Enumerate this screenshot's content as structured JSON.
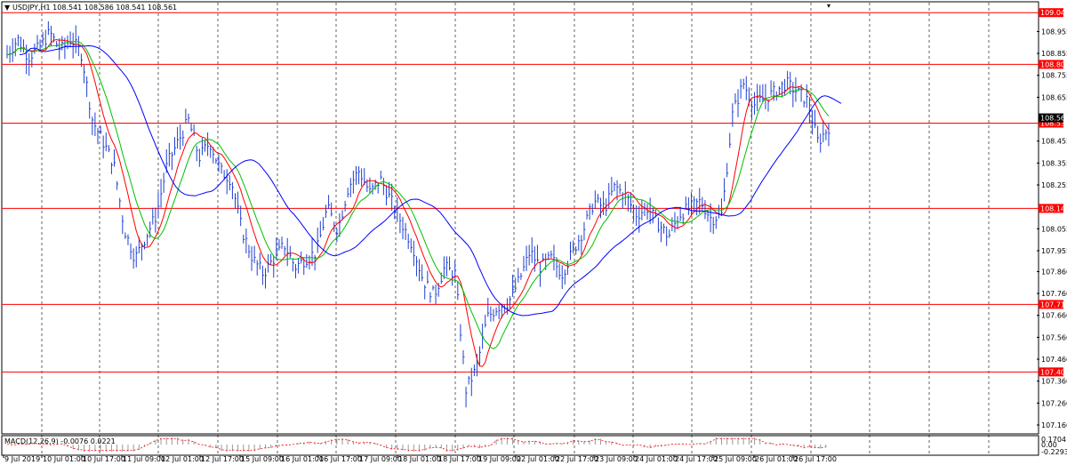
{
  "window": {
    "title": "USDJPY,H1  108.541 108.586 108.541 108.561",
    "menu_icon": "triangle-down-icon"
  },
  "macd": {
    "label": "MACD(12,26,9) -0.0076 0.0221",
    "scale": [
      "0.1704",
      "0.00",
      "-0.2293"
    ]
  },
  "price_axis": {
    "labels": [
      "108.955",
      "108.855",
      "108.755",
      "108.655",
      "108.455",
      "108.355",
      "108.255",
      "108.055",
      "107.955",
      "107.860",
      "107.760",
      "107.660",
      "107.560",
      "107.460",
      "107.360",
      "107.260",
      "107.160"
    ],
    "current_price": "108.561"
  },
  "hlines": [
    {
      "price": "109.041",
      "color": "#ff0000"
    },
    {
      "price": "108.805",
      "color": "#ff0000"
    },
    {
      "price": "108.537",
      "color": "#ff0000"
    },
    {
      "price": "108.148",
      "color": "#ff0000"
    },
    {
      "price": "107.710",
      "color": "#ff0000"
    },
    {
      "price": "107.402",
      "color": "#ff0000"
    }
  ],
  "time_axis": [
    "9 Jul 2019",
    "10 Jul 01:00",
    "10 Jul 17:00",
    "11 Jul 09:00",
    "12 Jul 01:00",
    "12 Jul 17:00",
    "15 Jul 09:00",
    "16 Jul 01:00",
    "16 Jul 17:00",
    "17 Jul 09:00",
    "18 Jul 01:00",
    "18 Jul 17:00",
    "19 Jul 09:00",
    "22 Jul 01:00",
    "22 Jul 17:00",
    "23 Jul 09:00",
    "24 Jul 01:00",
    "24 Jul 17:00",
    "25 Jul 09:00",
    "26 Jul 01:00",
    "26 Jul 17:00"
  ],
  "chart_data": {
    "type": "bar",
    "symbol": "USDJPY",
    "timeframe": "H1",
    "ohlc_header": [
      108.541,
      108.586,
      108.541,
      108.561
    ],
    "ylim": [
      107.16,
      109.05
    ],
    "moving_averages_colors": [
      "#ff0000",
      "#00c000",
      "#0000ff"
    ],
    "bar_color": "#1f3fd0",
    "price_path": [
      [
        0,
        108.85
      ],
      [
        1,
        108.92
      ],
      [
        2,
        108.84
      ],
      [
        3,
        108.88
      ],
      [
        4,
        108.95
      ],
      [
        5,
        108.87
      ],
      [
        6,
        108.92
      ],
      [
        7,
        108.85
      ],
      [
        8,
        108.55
      ],
      [
        9,
        108.45
      ],
      [
        10,
        108.35
      ],
      [
        11,
        108.05
      ],
      [
        12,
        107.92
      ],
      [
        13,
        108.02
      ],
      [
        14,
        108.12
      ],
      [
        15,
        108.35
      ],
      [
        16,
        108.45
      ],
      [
        17,
        108.55
      ],
      [
        18,
        108.38
      ],
      [
        19,
        108.45
      ],
      [
        20,
        108.32
      ],
      [
        21,
        108.28
      ],
      [
        22,
        108.05
      ],
      [
        23,
        107.92
      ],
      [
        24,
        107.85
      ],
      [
        25,
        107.92
      ],
      [
        26,
        107.98
      ],
      [
        27,
        107.88
      ],
      [
        28,
        107.92
      ],
      [
        29,
        107.95
      ],
      [
        30,
        108.15
      ],
      [
        31,
        108.05
      ],
      [
        32,
        108.25
      ],
      [
        33,
        108.32
      ],
      [
        34,
        108.22
      ],
      [
        35,
        108.28
      ],
      [
        36,
        108.18
      ],
      [
        37,
        108.08
      ],
      [
        38,
        107.98
      ],
      [
        39,
        107.82
      ],
      [
        40,
        107.75
      ],
      [
        41,
        107.88
      ],
      [
        42,
        107.85
      ],
      [
        43,
        107.32
      ],
      [
        44,
        107.42
      ],
      [
        45,
        107.65
      ],
      [
        46,
        107.7
      ],
      [
        47,
        107.72
      ],
      [
        48,
        107.82
      ],
      [
        49,
        107.95
      ],
      [
        50,
        107.88
      ],
      [
        51,
        107.92
      ],
      [
        52,
        107.85
      ],
      [
        53,
        107.95
      ],
      [
        54,
        108.05
      ],
      [
        55,
        108.18
      ],
      [
        56,
        108.15
      ],
      [
        57,
        108.25
      ],
      [
        58,
        108.2
      ],
      [
        59,
        108.12
      ],
      [
        60,
        108.15
      ],
      [
        61,
        108.08
      ],
      [
        62,
        108.02
      ],
      [
        63,
        108.12
      ],
      [
        64,
        108.15
      ],
      [
        65,
        108.18
      ],
      [
        66,
        108.1
      ],
      [
        67,
        108.12
      ],
      [
        68,
        108.58
      ],
      [
        69,
        108.72
      ],
      [
        70,
        108.62
      ],
      [
        71,
        108.65
      ],
      [
        72,
        108.68
      ],
      [
        73,
        108.72
      ],
      [
        74,
        108.68
      ],
      [
        75,
        108.64
      ],
      [
        76,
        108.45
      ],
      [
        77,
        108.52
      ]
    ]
  }
}
